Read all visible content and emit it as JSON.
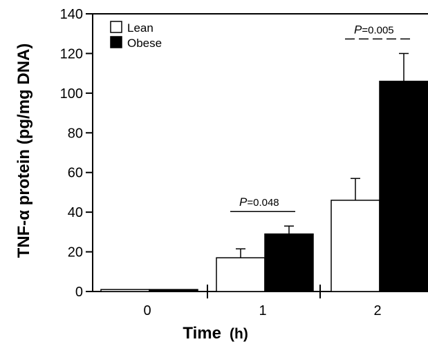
{
  "chart_data": {
    "type": "bar",
    "categories": [
      "0",
      "1",
      "2"
    ],
    "series": [
      {
        "name": "Lean",
        "values": [
          1,
          17,
          46
        ],
        "errors": [
          0,
          4.5,
          11
        ],
        "color": "#ffffff"
      },
      {
        "name": "Obese",
        "values": [
          1,
          29,
          106
        ],
        "errors": [
          0,
          4,
          14
        ],
        "color": "#000000"
      }
    ],
    "xlabel": "Time",
    "xlabel_unit": "(h)",
    "ylabel": "TNF-α protein (pg/mg DNA)",
    "ylim": [
      0,
      140
    ],
    "yticks": [
      0,
      20,
      40,
      60,
      80,
      100,
      120,
      140
    ],
    "legend_position": "top-left",
    "annotations": [
      {
        "category": "1",
        "p_letter": "P",
        "p_value": "=0.048",
        "line_style": "solid"
      },
      {
        "category": "2",
        "p_letter": "P",
        "p_value": "=0.005",
        "line_style": "dashed"
      }
    ],
    "grid": false
  }
}
